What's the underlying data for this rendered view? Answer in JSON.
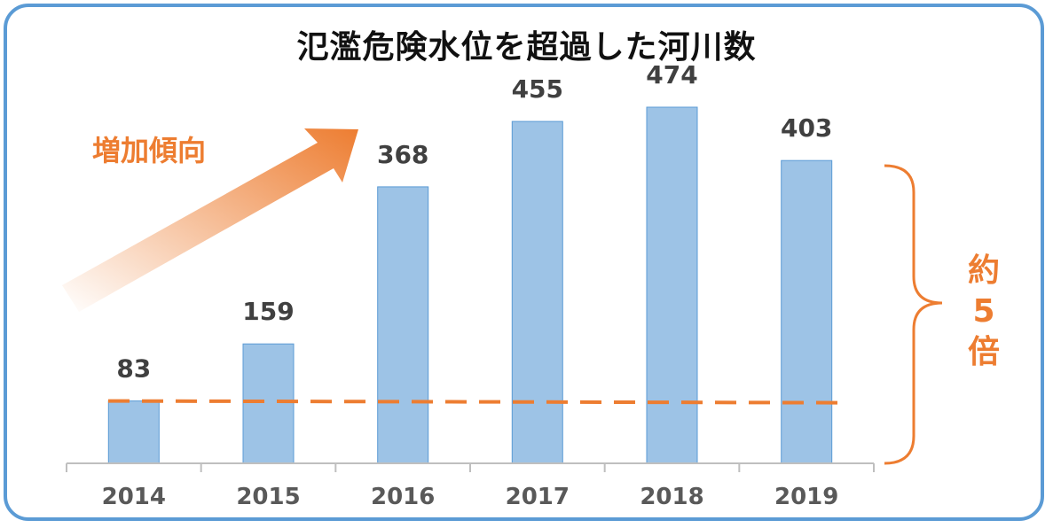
{
  "chart_data": {
    "type": "bar",
    "title": "氾濫危険水位を超過した河川数",
    "categories": [
      "2014",
      "2015",
      "2016",
      "2017",
      "2018",
      "2019"
    ],
    "values": [
      83,
      159,
      368,
      455,
      474,
      403
    ],
    "xlabel": "",
    "ylabel": "",
    "ylim": [
      0,
      474
    ],
    "grid": false,
    "legend": "none",
    "bar_color": "#9dc3e6",
    "bar_edge_color": "#5b9bd5",
    "annotations": {
      "trend_text": "増加傾向",
      "ratio_lines": [
        "約",
        "5",
        "倍"
      ],
      "reference_line_value": 83,
      "accent_color": "#ed7d31"
    }
  }
}
